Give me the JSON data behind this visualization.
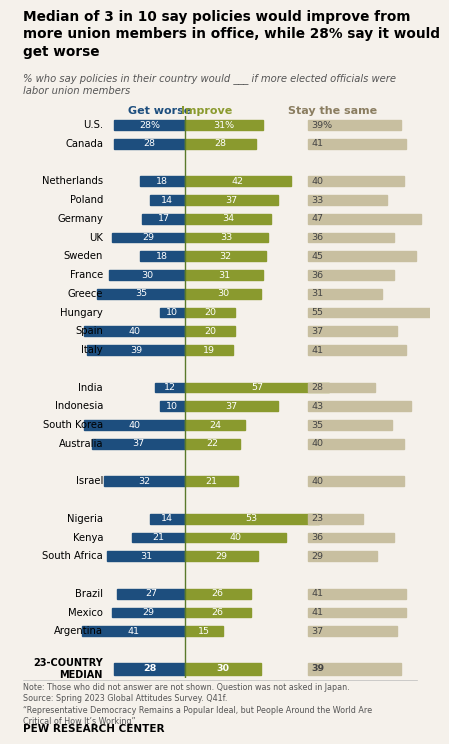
{
  "title": "Median of 3 in 10 say policies would improve from\nmore union members in office, while 28% say it would\nget worse",
  "subtitle": "% who say policies in their country would ___ if more elected officials were\nlabor union members",
  "col_worse_label": "Get worse",
  "col_improve_label": "Improve",
  "col_same_label": "Stay the same",
  "countries": [
    "U.S.",
    "Canada",
    "",
    "Netherlands",
    "Poland",
    "Germany",
    "UK",
    "Sweden",
    "France",
    "Greece",
    "Hungary",
    "Spain",
    "Italy",
    "",
    "India",
    "Indonesia",
    "South Korea",
    "Australia",
    "",
    "Israel",
    "",
    "Nigeria",
    "Kenya",
    "South Africa",
    "",
    "Brazil",
    "Mexico",
    "Argentina",
    "",
    "23-COUNTRY\nMEDIAN"
  ],
  "worse": [
    28,
    28,
    null,
    18,
    14,
    17,
    29,
    18,
    30,
    35,
    10,
    40,
    39,
    null,
    12,
    10,
    40,
    37,
    null,
    32,
    null,
    14,
    21,
    31,
    null,
    27,
    29,
    41,
    null,
    28
  ],
  "improve": [
    31,
    28,
    null,
    42,
    37,
    34,
    33,
    32,
    31,
    30,
    20,
    20,
    19,
    null,
    57,
    37,
    24,
    22,
    null,
    21,
    null,
    53,
    40,
    29,
    null,
    26,
    26,
    15,
    null,
    30
  ],
  "same": [
    39,
    41,
    null,
    40,
    33,
    47,
    36,
    45,
    36,
    31,
    55,
    37,
    41,
    null,
    28,
    43,
    35,
    40,
    null,
    40,
    null,
    23,
    36,
    29,
    null,
    41,
    41,
    37,
    null,
    39
  ],
  "show_pct_symbol": [
    true,
    false,
    null,
    false,
    false,
    false,
    false,
    false,
    false,
    false,
    false,
    false,
    false,
    null,
    false,
    false,
    false,
    false,
    null,
    false,
    null,
    false,
    false,
    false,
    null,
    false,
    false,
    false,
    null,
    false
  ],
  "color_worse": "#1d4e7e",
  "color_improve": "#8a9a2e",
  "color_same": "#c8bfa0",
  "background_color": "#f5f1eb",
  "note_text": "Note: Those who did not answer are not shown. Question was not asked in Japan.\nSource: Spring 2023 Global Attitudes Survey. Q41f.\n“Representative Democracy Remains a Popular Ideal, but People Around the World Are\nCritical of How It’s Working”",
  "pew_label": "PEW RESEARCH CENTER",
  "center_line_color": "#5a7a2a"
}
